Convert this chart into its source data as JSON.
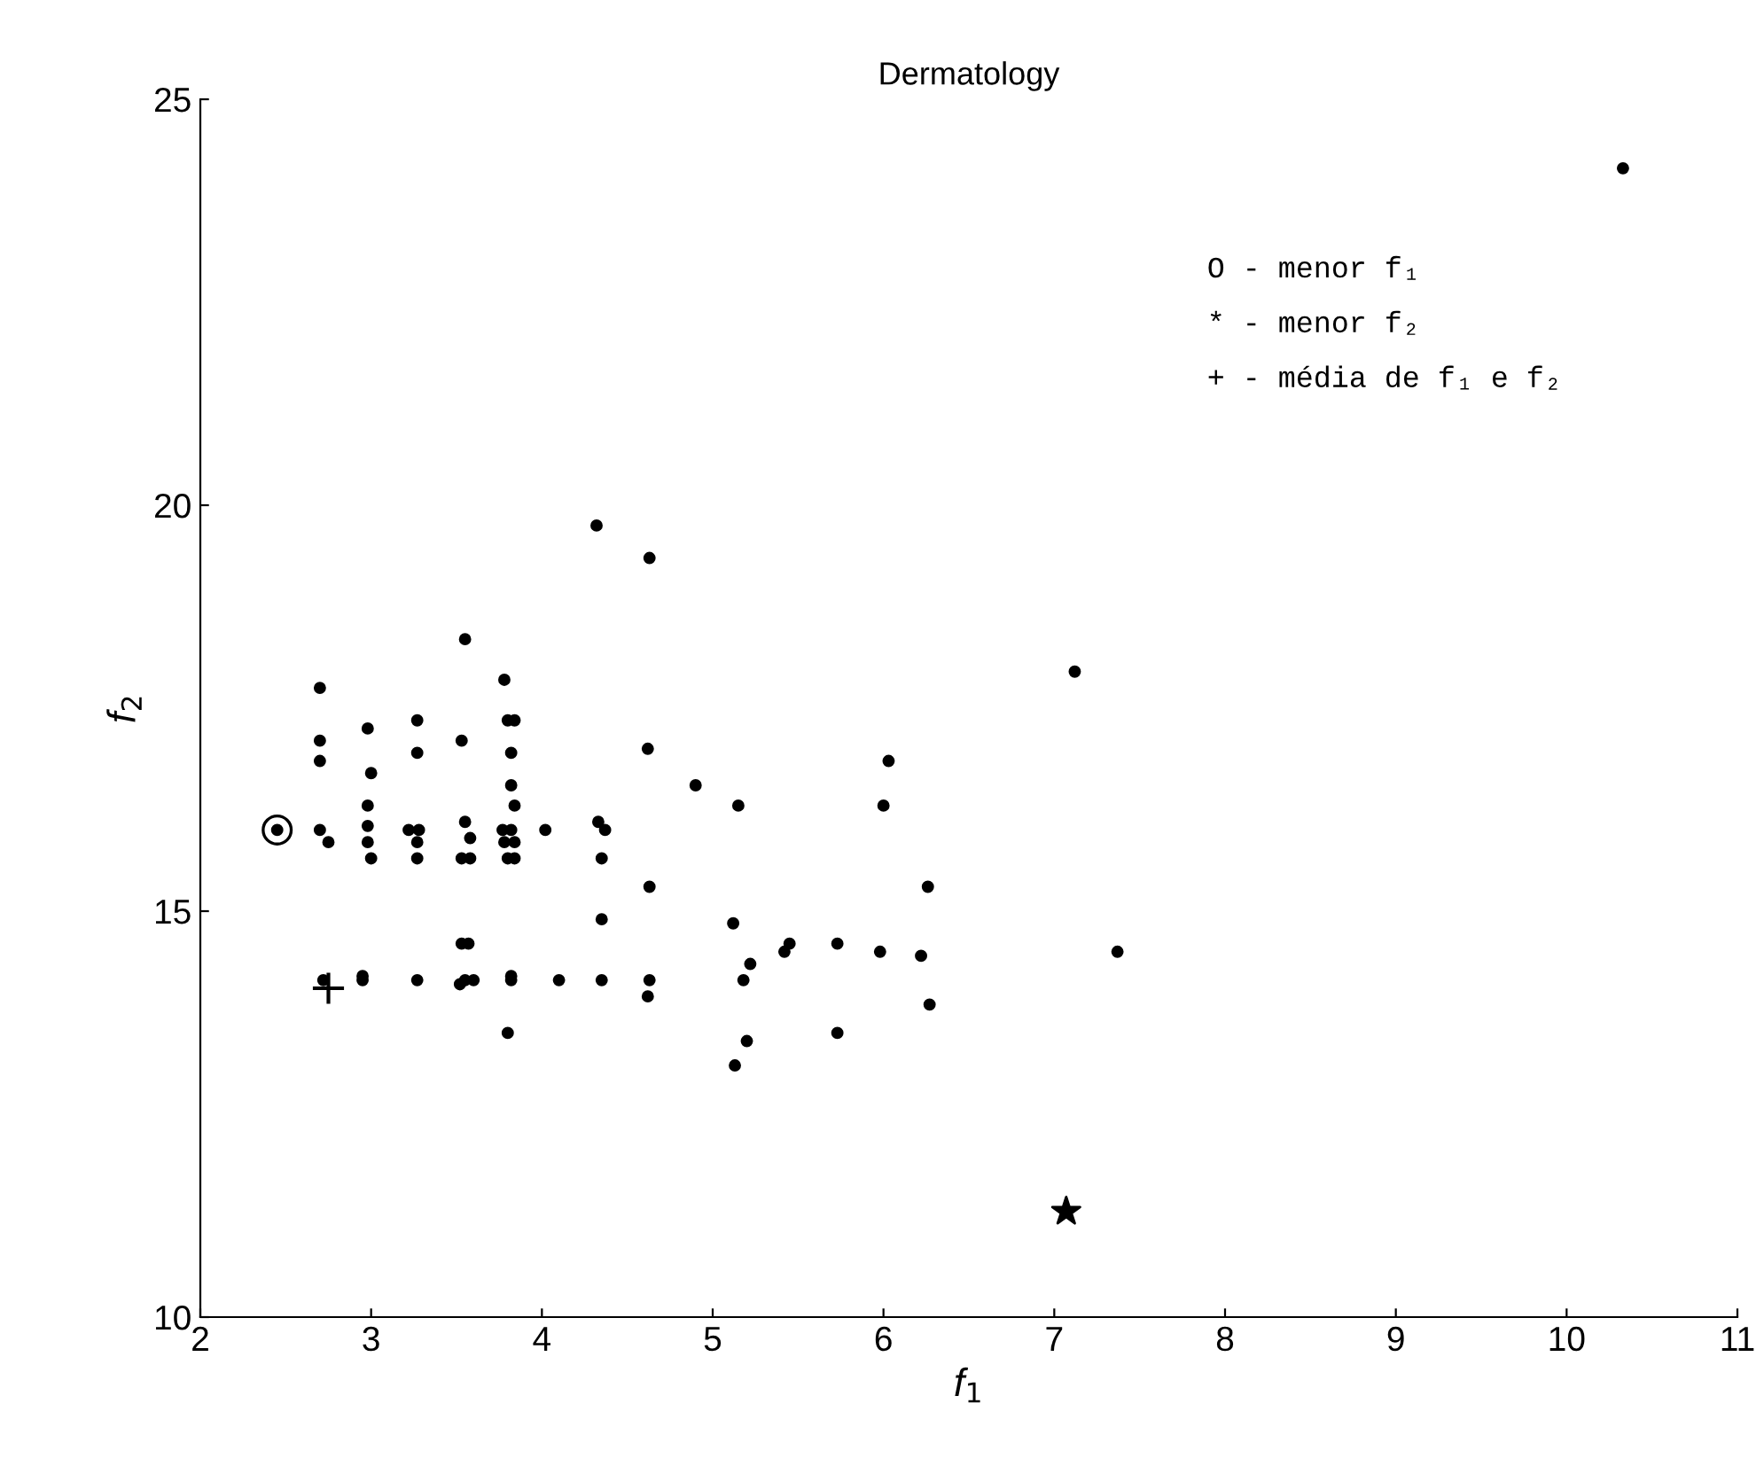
{
  "chart_data": {
    "type": "scatter",
    "title": "Dermatology",
    "xlabel": "f$_{1}$",
    "ylabel": "f$_{2}$",
    "xlim": [
      2,
      11
    ],
    "ylim": [
      10,
      25
    ],
    "xticks": [
      2,
      3,
      4,
      5,
      6,
      7,
      8,
      9,
      10,
      11
    ],
    "yticks": [
      10,
      15,
      20,
      25
    ],
    "grid": false,
    "legend": false,
    "marker": "circle",
    "annotations": [
      "O - menor f₁",
      "* - menor f₂",
      "+ - média de f₁ e f₂"
    ],
    "series": [
      {
        "color": "#000000",
        "x": [
          10.33,
          4.32,
          4.63,
          3.55,
          2.7,
          3.78,
          7.12,
          2.7,
          2.98,
          3.27,
          3.8,
          3.84,
          3.82,
          3.53,
          3.27,
          2.7,
          3.0,
          4.62,
          4.9,
          6.03,
          3.82,
          3.84,
          2.98,
          6.0,
          5.15,
          3.55,
          4.33,
          4.37,
          4.02,
          2.7,
          2.98,
          3.22,
          3.28,
          3.77,
          3.82,
          3.78,
          3.84,
          2.75,
          2.98,
          3.27,
          3.58,
          3.0,
          3.27,
          3.53,
          3.58,
          3.8,
          3.84,
          4.35,
          4.63,
          6.26,
          4.35,
          5.12,
          3.53,
          3.57,
          5.45,
          5.42,
          5.73,
          5.98,
          7.37,
          6.22,
          5.22,
          2.72,
          2.95,
          2.95,
          3.27,
          3.52,
          3.55,
          3.6,
          3.82,
          3.82,
          4.1,
          4.35,
          4.63,
          4.62,
          5.18,
          6.27,
          3.8,
          5.2,
          5.73,
          5.13,
          2.45
        ],
        "values": [
          24.15,
          19.75,
          19.35,
          18.35,
          17.75,
          17.85,
          17.95,
          17.1,
          17.25,
          17.35,
          17.35,
          17.35,
          16.95,
          17.1,
          16.95,
          16.85,
          16.7,
          17.0,
          16.55,
          16.85,
          16.55,
          16.3,
          16.3,
          16.3,
          16.3,
          16.1,
          16.1,
          16.0,
          16.0,
          16.0,
          16.05,
          16.0,
          16.0,
          16.0,
          16.0,
          15.85,
          15.85,
          15.85,
          15.85,
          15.85,
          15.9,
          15.65,
          15.65,
          15.65,
          15.65,
          15.65,
          15.65,
          15.65,
          15.3,
          15.3,
          14.9,
          14.85,
          14.6,
          14.6,
          14.6,
          14.5,
          14.6,
          14.5,
          14.5,
          14.45,
          14.35,
          14.15,
          14.15,
          14.2,
          14.15,
          14.1,
          14.15,
          14.15,
          14.15,
          14.2,
          14.15,
          14.15,
          14.15,
          13.95,
          14.15,
          13.85,
          13.5,
          13.4,
          13.5,
          13.1,
          16.0
        ]
      },
      {
        "color": "#000000",
        "marker": "circle",
        "x": [
          2.45
        ],
        "values": [
          16.0
        ]
      },
      {
        "color": "#000000",
        "marker": "star",
        "x": [
          7.07
        ],
        "values": [
          11.3
        ]
      },
      {
        "color": "#000000",
        "marker": "cross",
        "x": [
          2.75
        ],
        "values": [
          14.05
        ]
      }
    ]
  }
}
